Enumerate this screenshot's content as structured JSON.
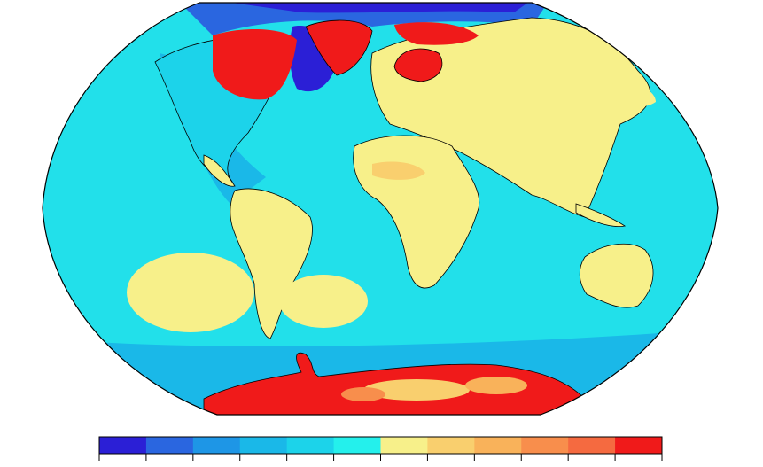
{
  "colorbar": {
    "colors": [
      "#2b1fd6",
      "#2a66e0",
      "#1e96e6",
      "#1ab8e8",
      "#1cd3ea",
      "#24f0ec",
      "#f7f08a",
      "#f9cf6e",
      "#f9b25a",
      "#f88e4c",
      "#f56a40",
      "#f01a1a"
    ]
  }
}
